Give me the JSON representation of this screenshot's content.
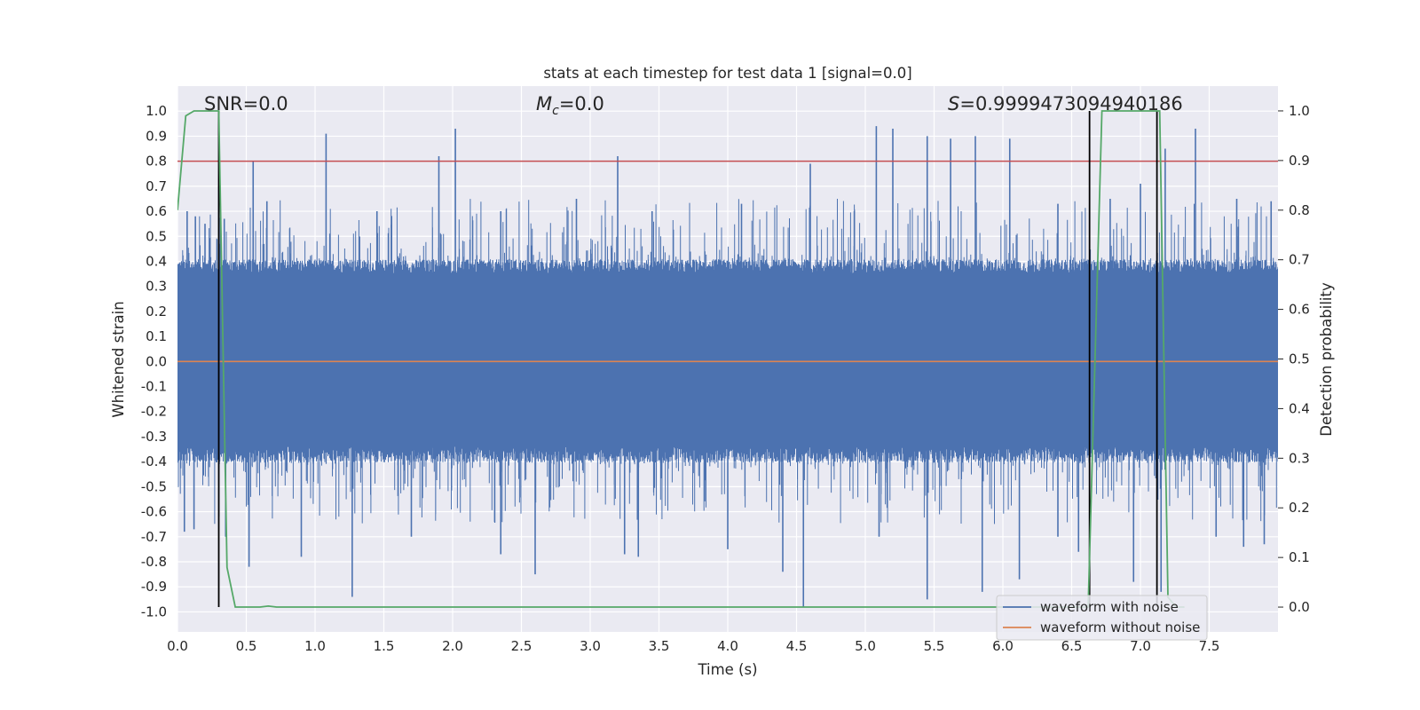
{
  "chart_data": {
    "type": "line",
    "title": "stats at each timestep for test data 1 [signal=0.0]",
    "xlabel": "Time (s)",
    "ylabel": "Whitened strain",
    "y2label": "Detection probability",
    "xlim": [
      0.0,
      8.0
    ],
    "ylim": [
      -1.08,
      1.1
    ],
    "y2lim": [
      -0.05,
      1.05
    ],
    "xticks": [
      "0.0",
      "0.5",
      "1.0",
      "1.5",
      "2.0",
      "2.5",
      "3.0",
      "3.5",
      "4.0",
      "4.5",
      "5.0",
      "5.5",
      "6.0",
      "6.5",
      "7.0",
      "7.5"
    ],
    "yticks": [
      "1.0",
      "0.9",
      "0.8",
      "0.7",
      "0.6",
      "0.5",
      "0.4",
      "0.3",
      "0.2",
      "0.1",
      "0.0",
      "-0.1",
      "-0.2",
      "-0.3",
      "-0.4",
      "-0.5",
      "-0.6",
      "-0.7",
      "-0.8",
      "-0.9",
      "-1.0"
    ],
    "y2ticks": [
      "1.0",
      "0.9",
      "0.8",
      "0.7",
      "0.6",
      "0.5",
      "0.4",
      "0.3",
      "0.2",
      "0.1",
      "0.0"
    ],
    "annotations": {
      "snr": "SNR=0.0",
      "mc_symbol": "M",
      "mc_sub": "c",
      "mc_value": "=0.0",
      "s_symbol": "S",
      "s_value": "=0.9999473094940186"
    },
    "threshold": {
      "value": 0.8,
      "axis": "left",
      "color": "#c44e52"
    },
    "detection_markers": [
      0.3,
      6.63,
      7.12
    ],
    "series": [
      {
        "name": "waveform with noise",
        "color": "#4c72b0",
        "axis": "left",
        "kind": "noise",
        "core_amplitude": 0.4,
        "spikes": [
          [
            0.07,
            0.6
          ],
          [
            0.13,
            0.58
          ],
          [
            0.2,
            0.55
          ],
          [
            0.3,
            0.7
          ],
          [
            0.34,
            0.57
          ],
          [
            0.55,
            0.8
          ],
          [
            0.65,
            0.64
          ],
          [
            1.08,
            0.91
          ],
          [
            1.45,
            0.6
          ],
          [
            1.9,
            0.82
          ],
          [
            2.02,
            0.93
          ],
          [
            2.35,
            0.6
          ],
          [
            2.9,
            0.65
          ],
          [
            3.2,
            0.82
          ],
          [
            3.45,
            0.6
          ],
          [
            4.1,
            0.63
          ],
          [
            4.6,
            0.79
          ],
          [
            4.92,
            0.6
          ],
          [
            5.08,
            0.94
          ],
          [
            5.2,
            0.93
          ],
          [
            5.45,
            0.9
          ],
          [
            5.62,
            0.89
          ],
          [
            5.8,
            0.9
          ],
          [
            6.05,
            0.89
          ],
          [
            6.4,
            0.63
          ],
          [
            6.78,
            0.65
          ],
          [
            7.0,
            0.71
          ],
          [
            7.18,
            0.85
          ],
          [
            7.4,
            0.93
          ],
          [
            7.7,
            0.65
          ],
          [
            7.95,
            0.64
          ],
          [
            0.05,
            -0.68
          ],
          [
            0.12,
            -0.67
          ],
          [
            0.35,
            -0.7
          ],
          [
            0.52,
            -0.82
          ],
          [
            0.9,
            -0.78
          ],
          [
            1.27,
            -0.94
          ],
          [
            1.7,
            -0.7
          ],
          [
            2.35,
            -0.77
          ],
          [
            2.6,
            -0.85
          ],
          [
            3.25,
            -0.77
          ],
          [
            3.35,
            -0.78
          ],
          [
            4.0,
            -0.75
          ],
          [
            4.4,
            -0.84
          ],
          [
            4.55,
            -0.98
          ],
          [
            5.1,
            -0.7
          ],
          [
            5.45,
            -0.95
          ],
          [
            5.85,
            -0.92
          ],
          [
            6.12,
            -0.87
          ],
          [
            6.4,
            -0.7
          ],
          [
            6.55,
            -0.76
          ],
          [
            6.95,
            -0.88
          ],
          [
            7.15,
            -0.92
          ],
          [
            7.55,
            -0.7
          ],
          [
            7.75,
            -0.74
          ],
          [
            7.9,
            -0.73
          ]
        ]
      },
      {
        "name": "waveform without noise",
        "color": "#dd8452",
        "axis": "left",
        "x": [
          0.0,
          8.0
        ],
        "y": [
          0.0,
          0.0
        ]
      },
      {
        "name": "detection probability",
        "color": "#55a868",
        "axis": "right",
        "x": [
          0.0,
          0.06,
          0.12,
          0.18,
          0.24,
          0.3,
          0.36,
          0.42,
          0.48,
          0.54,
          0.6,
          0.66,
          0.72,
          6.62,
          6.66,
          6.72,
          7.08,
          7.14,
          7.2,
          7.26,
          7.32
        ],
        "y": [
          0.8,
          0.99,
          1.0,
          1.0,
          1.0,
          1.0,
          0.08,
          0.0,
          0.0,
          0.0,
          0.0,
          0.002,
          0.0,
          0.0,
          0.4,
          1.0,
          1.0,
          1.0,
          0.02,
          0.0,
          0.0
        ]
      }
    ]
  },
  "legend": {
    "items": [
      {
        "label": "waveform with noise",
        "color": "#4c72b0"
      },
      {
        "label": "waveform without noise",
        "color": "#dd8452"
      }
    ]
  }
}
